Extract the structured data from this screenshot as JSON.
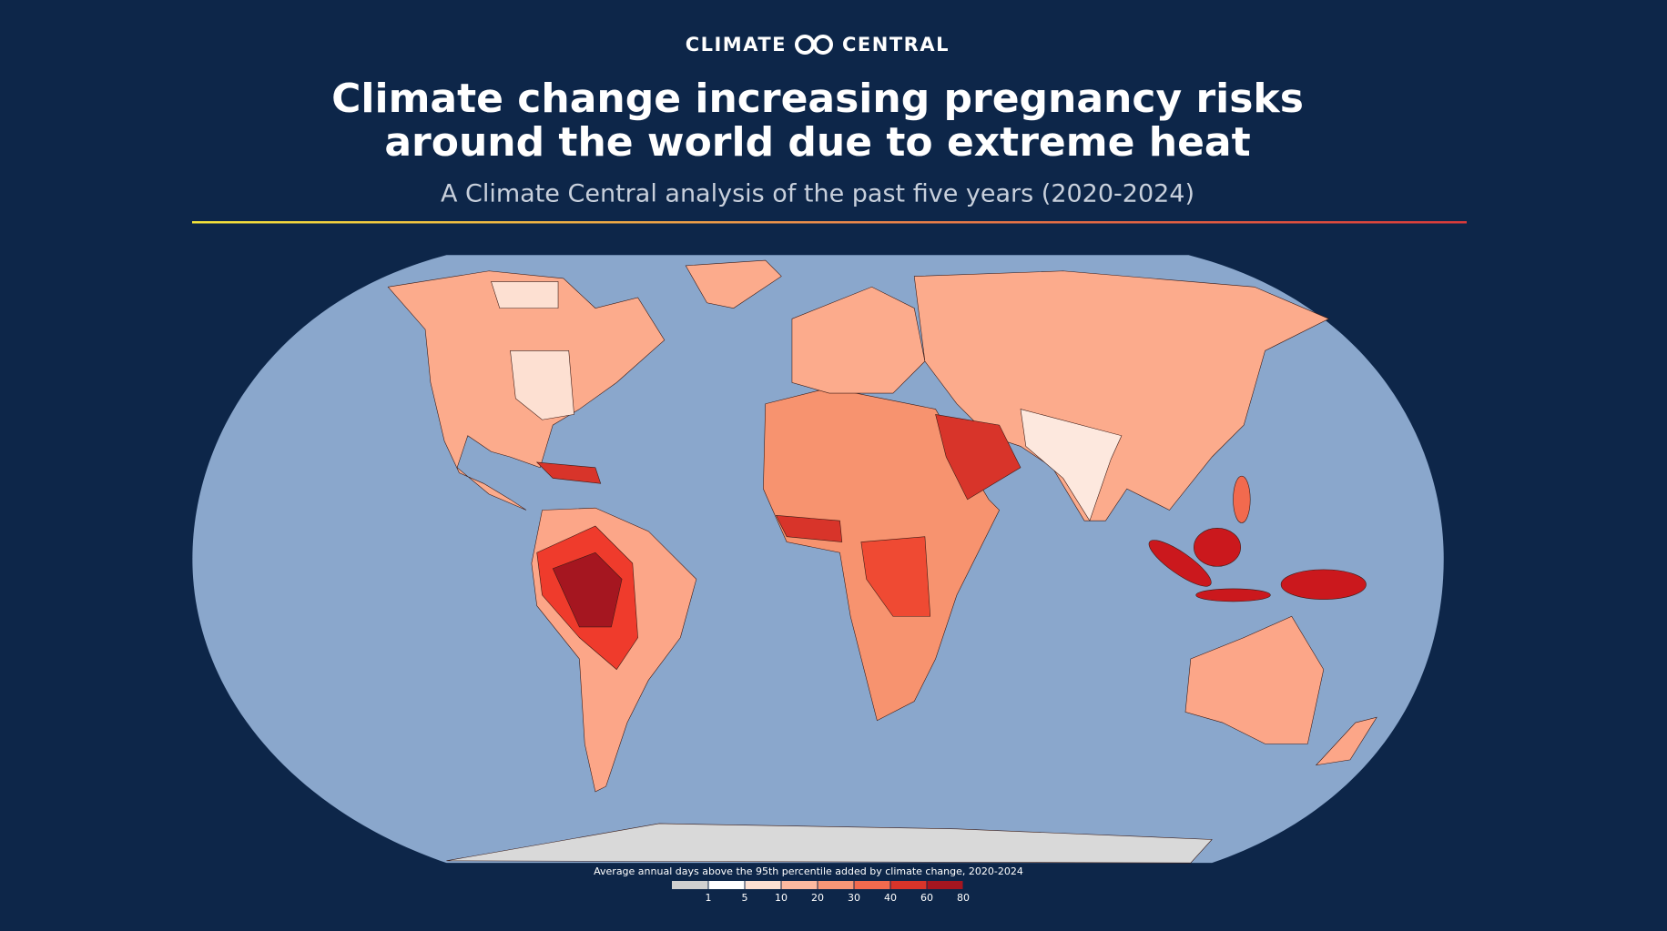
{
  "brand": {
    "left": "CLIMATE",
    "right": "CENTRAL"
  },
  "title": [
    "Climate change increasing pregnancy risks",
    "around the world due to extreme heat"
  ],
  "subtitle": "A Climate Central analysis of the past five years (2020-2024)",
  "legend": {
    "title": "Average annual days above the 95th percentile added by climate change, 2020-2024",
    "ticks": [
      1,
      5,
      10,
      20,
      30,
      40,
      60,
      80
    ],
    "colors": [
      "#d0d0d0",
      "#ffffff",
      "#fde0d2",
      "#fcb9a0",
      "#f99777",
      "#f26a4e",
      "#d8342a",
      "#a51620"
    ]
  }
}
